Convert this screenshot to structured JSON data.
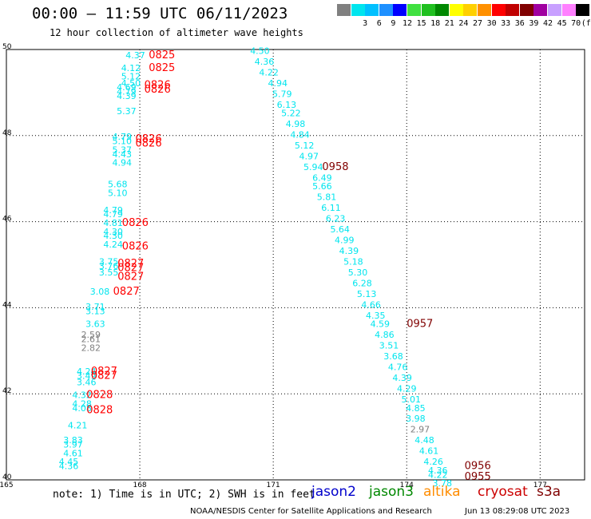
{
  "title": "00:00 – 11:59 UTC 06/11/2023",
  "subtitle": "12 hour collection of altimeter wave heights",
  "legend": {
    "unit": "(ft)",
    "bins": [
      {
        "label": "",
        "color": "#808080"
      },
      {
        "label": "3",
        "color": "#00e5ee"
      },
      {
        "label": "6",
        "color": "#00c0ff"
      },
      {
        "label": "9",
        "color": "#1e90ff"
      },
      {
        "label": "12",
        "color": "#0000ff"
      },
      {
        "label": "15",
        "color": "#40e040"
      },
      {
        "label": "18",
        "color": "#20c020"
      },
      {
        "label": "21",
        "color": "#008800"
      },
      {
        "label": "24",
        "color": "#ffff00"
      },
      {
        "label": "27",
        "color": "#ffd000"
      },
      {
        "label": "30",
        "color": "#ff9000"
      },
      {
        "label": "33",
        "color": "#ff0000"
      },
      {
        "label": "36",
        "color": "#c00000"
      },
      {
        "label": "39",
        "color": "#800000"
      },
      {
        "label": "42",
        "color": "#a000a0"
      },
      {
        "label": "45",
        "color": "#c8a0ff"
      },
      {
        "label": "70",
        "color": "#ff80ff"
      },
      {
        "label": "",
        "color": "#000000"
      }
    ]
  },
  "note": "note: 1) Time is in UTC; 2) SWH is in feet",
  "satellites": [
    {
      "name": "jason2",
      "color": "#0000cc"
    },
    {
      "name": "jason3",
      "color": "#008800"
    },
    {
      "name": "altika",
      "color": "#ff8c00"
    },
    {
      "name": "cryosat",
      "color": "#cc0000"
    },
    {
      "name": "s3a",
      "color": "#800000"
    }
  ],
  "footer": {
    "center": "NOAA/NESDIS Center for Satellite Applications and Research",
    "timestamp": "Jun 13 08:29:08 UTC 2023"
  },
  "chart_data": {
    "type": "scatter",
    "title": "00:00 – 11:59 UTC 06/11/2023",
    "subtitle": "12 hour collection of altimeter wave heights",
    "xlim": [
      165,
      178
    ],
    "ylim": [
      40,
      50
    ],
    "x_ticks": [
      "165",
      "168",
      "171",
      "174",
      "177"
    ],
    "y_ticks": [
      "40",
      "42",
      "44",
      "46",
      "48",
      "50"
    ],
    "grid": true,
    "colors": {
      "low": "#00e5ee",
      "gray": "#808080",
      "time_red": "#ff0000",
      "time_dark": "#800000"
    },
    "series": [
      {
        "name": "track-west",
        "points": [
          {
            "lon": 167.9,
            "lat": 49.8,
            "swh": "4.37",
            "c": "low"
          },
          {
            "lon": 167.8,
            "lat": 49.5,
            "swh": "4.12",
            "c": "low"
          },
          {
            "lon": 167.8,
            "lat": 49.3,
            "swh": "5.12",
            "c": "low"
          },
          {
            "lon": 167.8,
            "lat": 49.15,
            "swh": "4.50",
            "c": "low"
          },
          {
            "lon": 167.7,
            "lat": 49.05,
            "swh": "4.69",
            "c": "low"
          },
          {
            "lon": 167.7,
            "lat": 48.95,
            "swh": "4.79",
            "c": "low"
          },
          {
            "lon": 167.7,
            "lat": 48.85,
            "swh": "4.39",
            "c": "low"
          },
          {
            "lon": 167.7,
            "lat": 48.5,
            "swh": "5.37",
            "c": "low"
          },
          {
            "lon": 167.6,
            "lat": 47.9,
            "swh": "4.79",
            "c": "low"
          },
          {
            "lon": 167.6,
            "lat": 47.8,
            "swh": "5.10",
            "c": "low"
          },
          {
            "lon": 167.6,
            "lat": 47.6,
            "swh": "5.37",
            "c": "low"
          },
          {
            "lon": 167.6,
            "lat": 47.5,
            "swh": "4.43",
            "c": "low"
          },
          {
            "lon": 167.6,
            "lat": 47.3,
            "swh": "4.94",
            "c": "low"
          },
          {
            "lon": 167.5,
            "lat": 46.8,
            "swh": "5.68",
            "c": "low"
          },
          {
            "lon": 167.5,
            "lat": 46.6,
            "swh": "5.10",
            "c": "low"
          },
          {
            "lon": 167.4,
            "lat": 46.2,
            "swh": "4.79",
            "c": "low"
          },
          {
            "lon": 167.4,
            "lat": 46.1,
            "swh": "4.79",
            "c": "low"
          },
          {
            "lon": 167.4,
            "lat": 45.9,
            "swh": "4.81",
            "c": "low"
          },
          {
            "lon": 167.4,
            "lat": 45.7,
            "swh": "4.30",
            "c": "low"
          },
          {
            "lon": 167.4,
            "lat": 45.6,
            "swh": "4.30",
            "c": "low"
          },
          {
            "lon": 167.4,
            "lat": 45.4,
            "swh": "4.24",
            "c": "low"
          },
          {
            "lon": 167.3,
            "lat": 45.0,
            "swh": "3.75",
            "c": "low"
          },
          {
            "lon": 167.3,
            "lat": 44.9,
            "swh": "3.76",
            "c": "low"
          },
          {
            "lon": 167.3,
            "lat": 44.75,
            "swh": "3.55",
            "c": "low"
          },
          {
            "lon": 167.1,
            "lat": 44.3,
            "swh": "3.08",
            "c": "low"
          },
          {
            "lon": 167.0,
            "lat": 43.95,
            "swh": "3.71",
            "c": "low"
          },
          {
            "lon": 167.0,
            "lat": 43.85,
            "swh": "3.13",
            "c": "low"
          },
          {
            "lon": 167.0,
            "lat": 43.55,
            "swh": "3.63",
            "c": "low"
          },
          {
            "lon": 166.9,
            "lat": 43.3,
            "swh": "2.59",
            "c": "gray"
          },
          {
            "lon": 166.9,
            "lat": 43.2,
            "swh": "2.61",
            "c": "gray"
          },
          {
            "lon": 166.9,
            "lat": 43.0,
            "swh": "2.82",
            "c": "gray"
          },
          {
            "lon": 166.8,
            "lat": 42.45,
            "swh": "4.24",
            "c": "low"
          },
          {
            "lon": 166.8,
            "lat": 42.35,
            "swh": "3.49",
            "c": "low"
          },
          {
            "lon": 166.8,
            "lat": 42.2,
            "swh": "3.46",
            "c": "low"
          },
          {
            "lon": 166.7,
            "lat": 41.9,
            "swh": "4.32",
            "c": "low"
          },
          {
            "lon": 166.7,
            "lat": 41.7,
            "swh": "4.28",
            "c": "low"
          },
          {
            "lon": 166.7,
            "lat": 41.6,
            "swh": "4.08",
            "c": "low"
          },
          {
            "lon": 166.6,
            "lat": 41.2,
            "swh": "4.21",
            "c": "low"
          },
          {
            "lon": 166.5,
            "lat": 40.85,
            "swh": "3.83",
            "c": "low"
          },
          {
            "lon": 166.5,
            "lat": 40.75,
            "swh": "3.97",
            "c": "low"
          },
          {
            "lon": 166.5,
            "lat": 40.55,
            "swh": "4.61",
            "c": "low"
          },
          {
            "lon": 166.4,
            "lat": 40.35,
            "swh": "4.45",
            "c": "low"
          },
          {
            "lon": 166.4,
            "lat": 40.25,
            "swh": "4.36",
            "c": "low"
          }
        ]
      },
      {
        "name": "track-east",
        "points": [
          {
            "lon": 170.7,
            "lat": 49.9,
            "swh": "4.50",
            "c": "low"
          },
          {
            "lon": 170.8,
            "lat": 49.65,
            "swh": "4.36",
            "c": "low"
          },
          {
            "lon": 170.9,
            "lat": 49.4,
            "swh": "4.22",
            "c": "low"
          },
          {
            "lon": 171.1,
            "lat": 49.15,
            "swh": "4.94",
            "c": "low"
          },
          {
            "lon": 171.2,
            "lat": 48.9,
            "swh": "5.79",
            "c": "low"
          },
          {
            "lon": 171.3,
            "lat": 48.65,
            "swh": "6.13",
            "c": "low"
          },
          {
            "lon": 171.4,
            "lat": 48.45,
            "swh": "5.22",
            "c": "low"
          },
          {
            "lon": 171.5,
            "lat": 48.2,
            "swh": "4.98",
            "c": "low"
          },
          {
            "lon": 171.6,
            "lat": 47.95,
            "swh": "4.84",
            "c": "low"
          },
          {
            "lon": 171.7,
            "lat": 47.7,
            "swh": "5.12",
            "c": "low"
          },
          {
            "lon": 171.8,
            "lat": 47.45,
            "swh": "4.97",
            "c": "low"
          },
          {
            "lon": 171.9,
            "lat": 47.2,
            "swh": "5.94",
            "c": "low"
          },
          {
            "lon": 172.1,
            "lat": 46.95,
            "swh": "6.49",
            "c": "low"
          },
          {
            "lon": 172.1,
            "lat": 46.75,
            "swh": "5.66",
            "c": "low"
          },
          {
            "lon": 172.2,
            "lat": 46.5,
            "swh": "5.81",
            "c": "low"
          },
          {
            "lon": 172.3,
            "lat": 46.25,
            "swh": "6.11",
            "c": "low"
          },
          {
            "lon": 172.4,
            "lat": 46.0,
            "swh": "6.23",
            "c": "low"
          },
          {
            "lon": 172.5,
            "lat": 45.75,
            "swh": "5.64",
            "c": "low"
          },
          {
            "lon": 172.6,
            "lat": 45.5,
            "swh": "4.99",
            "c": "low"
          },
          {
            "lon": 172.7,
            "lat": 45.25,
            "swh": "4.39",
            "c": "low"
          },
          {
            "lon": 172.8,
            "lat": 45.0,
            "swh": "5.18",
            "c": "low"
          },
          {
            "lon": 172.9,
            "lat": 44.75,
            "swh": "5.30",
            "c": "low"
          },
          {
            "lon": 173.0,
            "lat": 44.5,
            "swh": "6.28",
            "c": "low"
          },
          {
            "lon": 173.1,
            "lat": 44.25,
            "swh": "5.13",
            "c": "low"
          },
          {
            "lon": 173.2,
            "lat": 44.0,
            "swh": "4.66",
            "c": "low"
          },
          {
            "lon": 173.3,
            "lat": 43.75,
            "swh": "4.35",
            "c": "low"
          },
          {
            "lon": 173.4,
            "lat": 43.55,
            "swh": "4.59",
            "c": "low"
          },
          {
            "lon": 173.5,
            "lat": 43.3,
            "swh": "4.86",
            "c": "low"
          },
          {
            "lon": 173.6,
            "lat": 43.05,
            "swh": "3.51",
            "c": "low"
          },
          {
            "lon": 173.7,
            "lat": 42.8,
            "swh": "3.68",
            "c": "low"
          },
          {
            "lon": 173.8,
            "lat": 42.55,
            "swh": "4.76",
            "c": "low"
          },
          {
            "lon": 173.9,
            "lat": 42.3,
            "swh": "4.39",
            "c": "low"
          },
          {
            "lon": 174.0,
            "lat": 42.05,
            "swh": "4.29",
            "c": "low"
          },
          {
            "lon": 174.1,
            "lat": 41.8,
            "swh": "5.01",
            "c": "low"
          },
          {
            "lon": 174.2,
            "lat": 41.6,
            "swh": "4.85",
            "c": "low"
          },
          {
            "lon": 174.2,
            "lat": 41.35,
            "swh": "3.98",
            "c": "low"
          },
          {
            "lon": 174.3,
            "lat": 41.1,
            "swh": "2.97",
            "c": "gray"
          },
          {
            "lon": 174.4,
            "lat": 40.85,
            "swh": "4.48",
            "c": "low"
          },
          {
            "lon": 174.5,
            "lat": 40.6,
            "swh": "4.61",
            "c": "low"
          },
          {
            "lon": 174.6,
            "lat": 40.35,
            "swh": "4.26",
            "c": "low"
          },
          {
            "lon": 174.7,
            "lat": 40.15,
            "swh": "4.36",
            "c": "low"
          },
          {
            "lon": 174.7,
            "lat": 40.05,
            "swh": "4.22",
            "c": "low"
          },
          {
            "lon": 174.8,
            "lat": 39.85,
            "swh": "3.78",
            "c": "low"
          }
        ]
      }
    ],
    "time_labels": [
      {
        "lon": 168.2,
        "lat": 49.8,
        "text": "0825",
        "c": "time_red"
      },
      {
        "lon": 168.2,
        "lat": 49.5,
        "text": "0825",
        "c": "time_red"
      },
      {
        "lon": 168.1,
        "lat": 49.1,
        "text": "0826",
        "c": "time_red"
      },
      {
        "lon": 168.1,
        "lat": 49.0,
        "text": "0826",
        "c": "time_red"
      },
      {
        "lon": 167.9,
        "lat": 47.85,
        "text": "0826",
        "c": "time_red"
      },
      {
        "lon": 167.9,
        "lat": 47.75,
        "text": "0826",
        "c": "time_red"
      },
      {
        "lon": 167.6,
        "lat": 45.9,
        "text": "0826",
        "c": "time_red"
      },
      {
        "lon": 167.6,
        "lat": 45.35,
        "text": "0826",
        "c": "time_red"
      },
      {
        "lon": 167.5,
        "lat": 44.95,
        "text": "0827",
        "c": "time_red"
      },
      {
        "lon": 167.5,
        "lat": 44.85,
        "text": "0827",
        "c": "time_red"
      },
      {
        "lon": 167.5,
        "lat": 44.65,
        "text": "0827",
        "c": "time_red"
      },
      {
        "lon": 167.4,
        "lat": 44.3,
        "text": "0827",
        "c": "time_red"
      },
      {
        "lon": 166.9,
        "lat": 42.45,
        "text": "0827",
        "c": "time_red"
      },
      {
        "lon": 166.9,
        "lat": 42.35,
        "text": "0827",
        "c": "time_red"
      },
      {
        "lon": 166.8,
        "lat": 41.9,
        "text": "0828",
        "c": "time_red"
      },
      {
        "lon": 166.8,
        "lat": 41.55,
        "text": "0828",
        "c": "time_red"
      },
      {
        "lon": 172.1,
        "lat": 47.2,
        "text": "0958",
        "c": "time_dark"
      },
      {
        "lon": 174.0,
        "lat": 43.55,
        "text": "0957",
        "c": "time_dark"
      },
      {
        "lon": 175.3,
        "lat": 40.25,
        "text": "0956",
        "c": "time_dark"
      },
      {
        "lon": 175.3,
        "lat": 40.0,
        "text": "0955",
        "c": "time_dark"
      }
    ]
  }
}
